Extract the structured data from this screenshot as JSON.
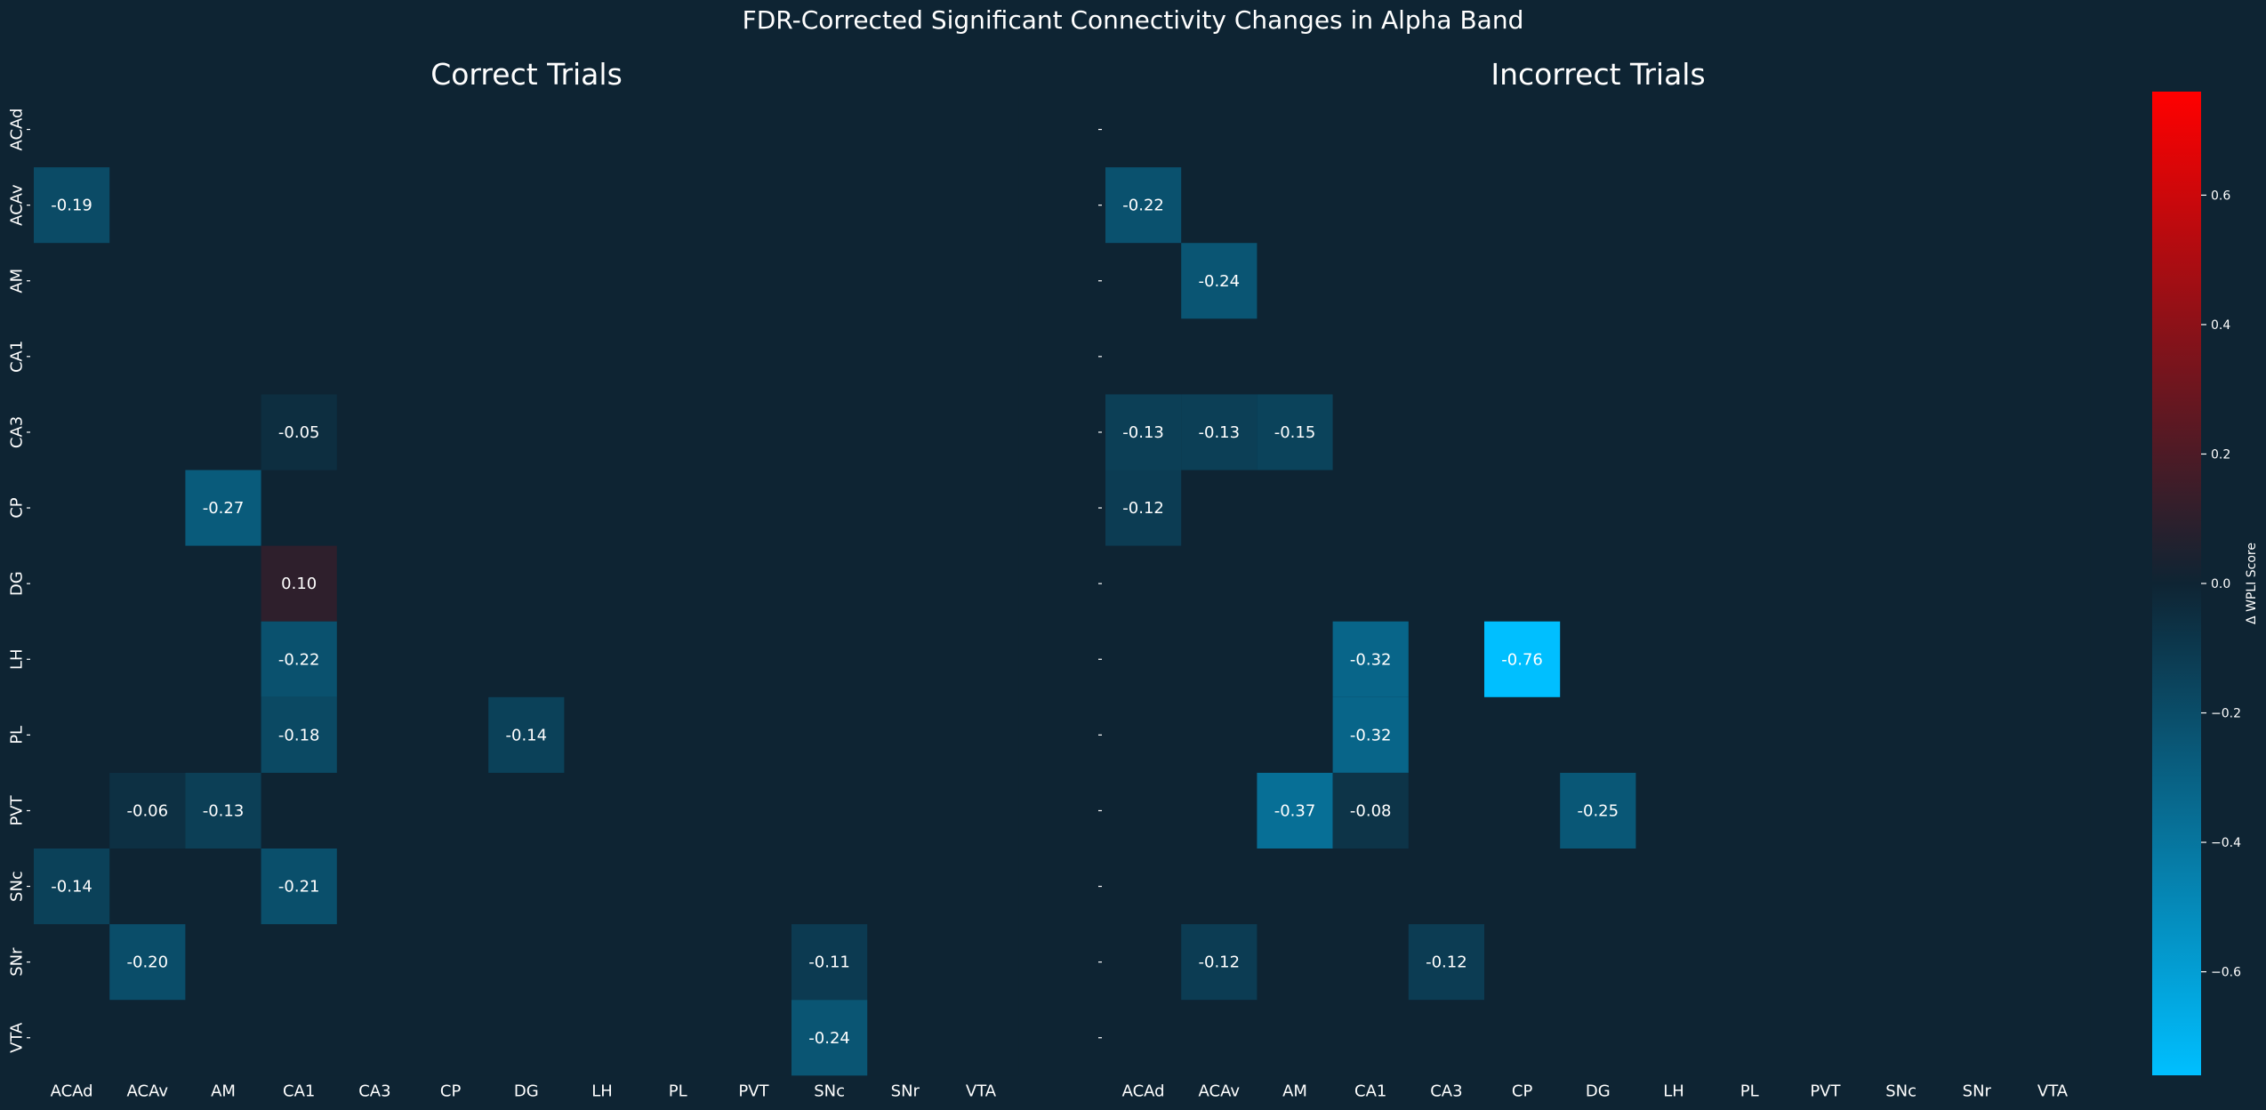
{
  "figure_title": "FDR-Corrected Significant Connectivity Changes in Alpha Band",
  "colors": {
    "background": "#0e2433",
    "negative_end": "#00bfff",
    "neutral": "#0e2433",
    "positive_end": "#ff0000",
    "text": "#ffffff"
  },
  "chart_data": [
    {
      "type": "heatmap",
      "title": "Correct Trials",
      "rows": [
        "ACAd",
        "ACAv",
        "AM",
        "CA1",
        "CA3",
        "CP",
        "DG",
        "LH",
        "PL",
        "PVT",
        "SNc",
        "SNr",
        "VTA"
      ],
      "cols": [
        "ACAd",
        "ACAv",
        "AM",
        "CA1",
        "CA3",
        "CP",
        "DG",
        "LH",
        "PL",
        "PVT",
        "SNc",
        "SNr",
        "VTA"
      ],
      "cells": [
        {
          "row": "ACAv",
          "col": "ACAd",
          "value": -0.19,
          "label": "-0.19"
        },
        {
          "row": "CA3",
          "col": "CA1",
          "value": -0.05,
          "label": "-0.05"
        },
        {
          "row": "CP",
          "col": "AM",
          "value": -0.27,
          "label": "-0.27"
        },
        {
          "row": "DG",
          "col": "CA1",
          "value": 0.1,
          "label": "0.10"
        },
        {
          "row": "LH",
          "col": "CA1",
          "value": -0.22,
          "label": "-0.22"
        },
        {
          "row": "PL",
          "col": "CA1",
          "value": -0.18,
          "label": "-0.18"
        },
        {
          "row": "PL",
          "col": "DG",
          "value": -0.14,
          "label": "-0.14"
        },
        {
          "row": "PVT",
          "col": "ACAv",
          "value": -0.06,
          "label": "-0.06"
        },
        {
          "row": "PVT",
          "col": "AM",
          "value": -0.13,
          "label": "-0.13"
        },
        {
          "row": "SNc",
          "col": "ACAd",
          "value": -0.14,
          "label": "-0.14"
        },
        {
          "row": "SNc",
          "col": "CA1",
          "value": -0.21,
          "label": "-0.21"
        },
        {
          "row": "SNr",
          "col": "ACAv",
          "value": -0.2,
          "label": "-0.20"
        },
        {
          "row": "SNr",
          "col": "SNc",
          "value": -0.11,
          "label": "-0.11"
        },
        {
          "row": "VTA",
          "col": "SNc",
          "value": -0.24,
          "label": "-0.24"
        }
      ]
    },
    {
      "type": "heatmap",
      "title": "Incorrect Trials",
      "rows": [
        "ACAd",
        "ACAv",
        "AM",
        "CA1",
        "CA3",
        "CP",
        "DG",
        "LH",
        "PL",
        "PVT",
        "SNc",
        "SNr",
        "VTA"
      ],
      "cols": [
        "ACAd",
        "ACAv",
        "AM",
        "CA1",
        "CA3",
        "CP",
        "DG",
        "LH",
        "PL",
        "PVT",
        "SNc",
        "SNr",
        "VTA"
      ],
      "cells": [
        {
          "row": "ACAv",
          "col": "ACAd",
          "value": -0.22,
          "label": "-0.22"
        },
        {
          "row": "AM",
          "col": "ACAv",
          "value": -0.24,
          "label": "-0.24"
        },
        {
          "row": "CA3",
          "col": "ACAd",
          "value": -0.13,
          "label": "-0.13"
        },
        {
          "row": "CA3",
          "col": "ACAv",
          "value": -0.13,
          "label": "-0.13"
        },
        {
          "row": "CA3",
          "col": "AM",
          "value": -0.15,
          "label": "-0.15"
        },
        {
          "row": "CP",
          "col": "ACAd",
          "value": -0.12,
          "label": "-0.12"
        },
        {
          "row": "LH",
          "col": "CA1",
          "value": -0.32,
          "label": "-0.32"
        },
        {
          "row": "LH",
          "col": "CP",
          "value": -0.76,
          "label": "-0.76"
        },
        {
          "row": "PL",
          "col": "CA1",
          "value": -0.32,
          "label": "-0.32"
        },
        {
          "row": "PVT",
          "col": "AM",
          "value": -0.37,
          "label": "-0.37"
        },
        {
          "row": "PVT",
          "col": "CA1",
          "value": -0.08,
          "label": "-0.08"
        },
        {
          "row": "PVT",
          "col": "DG",
          "value": -0.25,
          "label": "-0.25"
        },
        {
          "row": "SNr",
          "col": "ACAv",
          "value": -0.12,
          "label": "-0.12"
        },
        {
          "row": "SNr",
          "col": "CA3",
          "value": -0.12,
          "label": "-0.12"
        }
      ]
    }
  ],
  "colorbar": {
    "label": "Δ WPLI Score",
    "vmin": -0.76,
    "vmax": 0.76,
    "ticks": [
      0.6,
      0.4,
      0.2,
      0.0,
      -0.2,
      -0.4,
      -0.6
    ],
    "tick_labels": [
      "0.6",
      "0.4",
      "0.2",
      "0.0",
      "−0.2",
      "−0.4",
      "−0.6"
    ]
  }
}
